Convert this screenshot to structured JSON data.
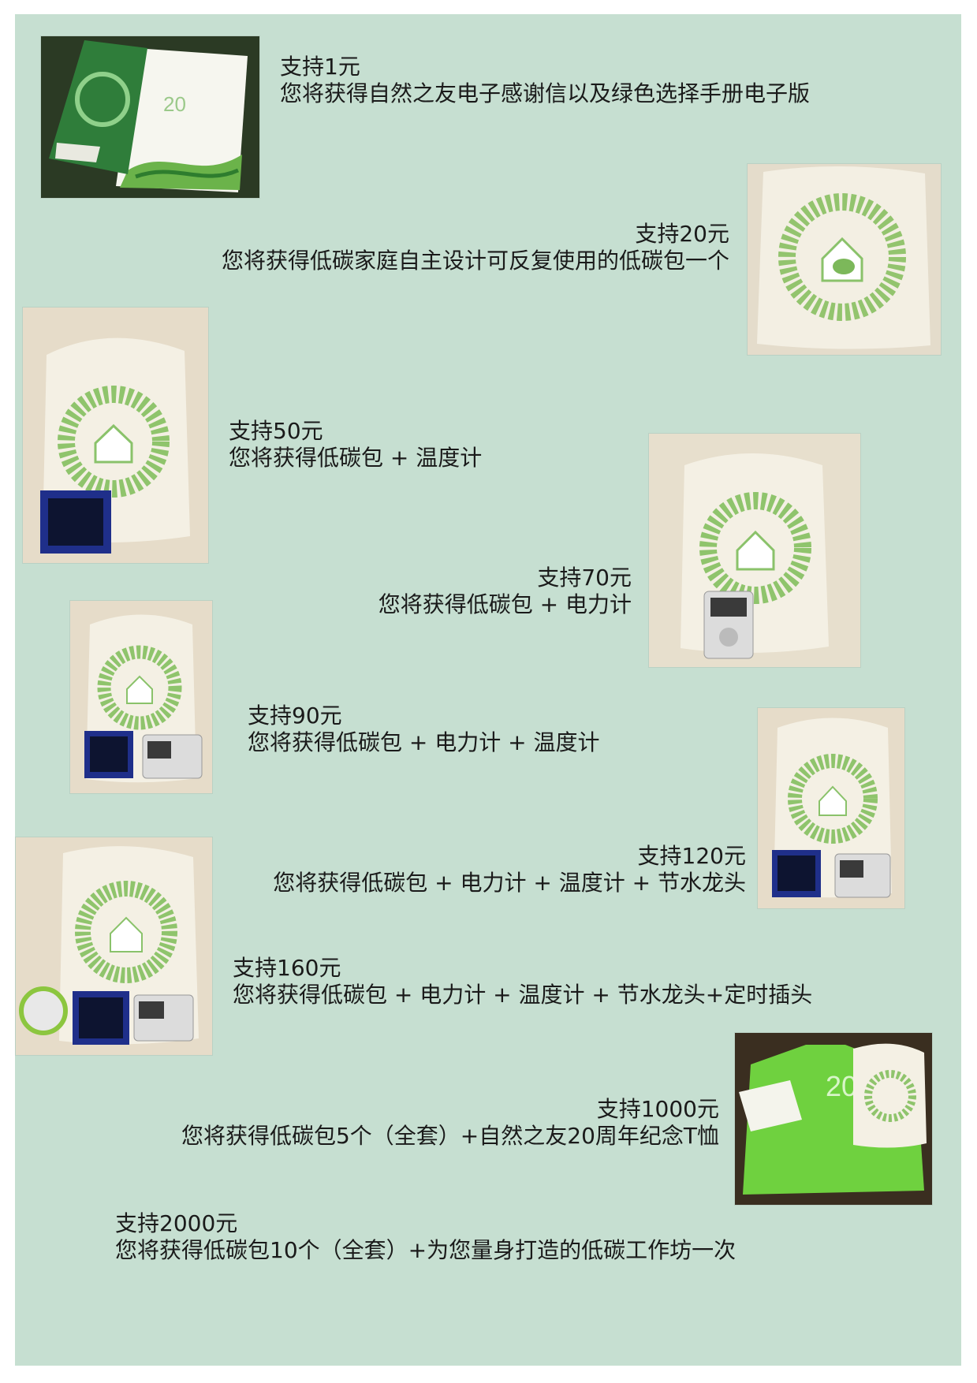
{
  "tiers": [
    {
      "amount": "支持1元",
      "reward": "您将获得自然之友电子感谢信以及绿色选择手册电子版"
    },
    {
      "amount": "支持20元",
      "reward": "您将获得低碳家庭自主设计可反复使用的低碳包一个"
    },
    {
      "amount": "支持50元",
      "reward": "您将获得低碳包 + 温度计"
    },
    {
      "amount": "支持70元",
      "reward": "您将获得低碳包 + 电力计"
    },
    {
      "amount": "支持90元",
      "reward": "您将获得低碳包 + 电力计 + 温度计"
    },
    {
      "amount": "支持120元",
      "reward": "您将获得低碳包 + 电力计 + 温度计 + 节水龙头"
    },
    {
      "amount": "支持160元",
      "reward": "您将获得低碳包 + 电力计 + 温度计 + 节水龙头+定时插头"
    },
    {
      "amount": "支持1000元",
      "reward": "您将获得低碳包5个（全套）+自然之友20周年纪念T恤"
    },
    {
      "amount": "支持2000元",
      "reward": "您将获得低碳包10个（全套）+为您量身打造的低碳工作坊一次"
    }
  ],
  "images": [
    {
      "icon": "green-choice-handbook-photo",
      "text": "绿色选择手册",
      "badge": "20"
    },
    {
      "icon": "low-carbon-bag-photo"
    },
    {
      "icon": "bag-with-thermometer-photo"
    },
    {
      "icon": "bag-with-power-meter-photo"
    },
    {
      "icon": "bag-thermometer-power-meter-photo"
    },
    {
      "icon": "bag-meters-faucet-photo"
    },
    {
      "icon": "bag-meters-faucet-timer-plug-photo"
    },
    {
      "icon": "tshirt-bag-handbook-photo",
      "badge": "20"
    }
  ],
  "colors": {
    "background": "#c6dfd1",
    "accent_green": "#3d8f3a",
    "tshirt_green": "#6fd13f"
  }
}
